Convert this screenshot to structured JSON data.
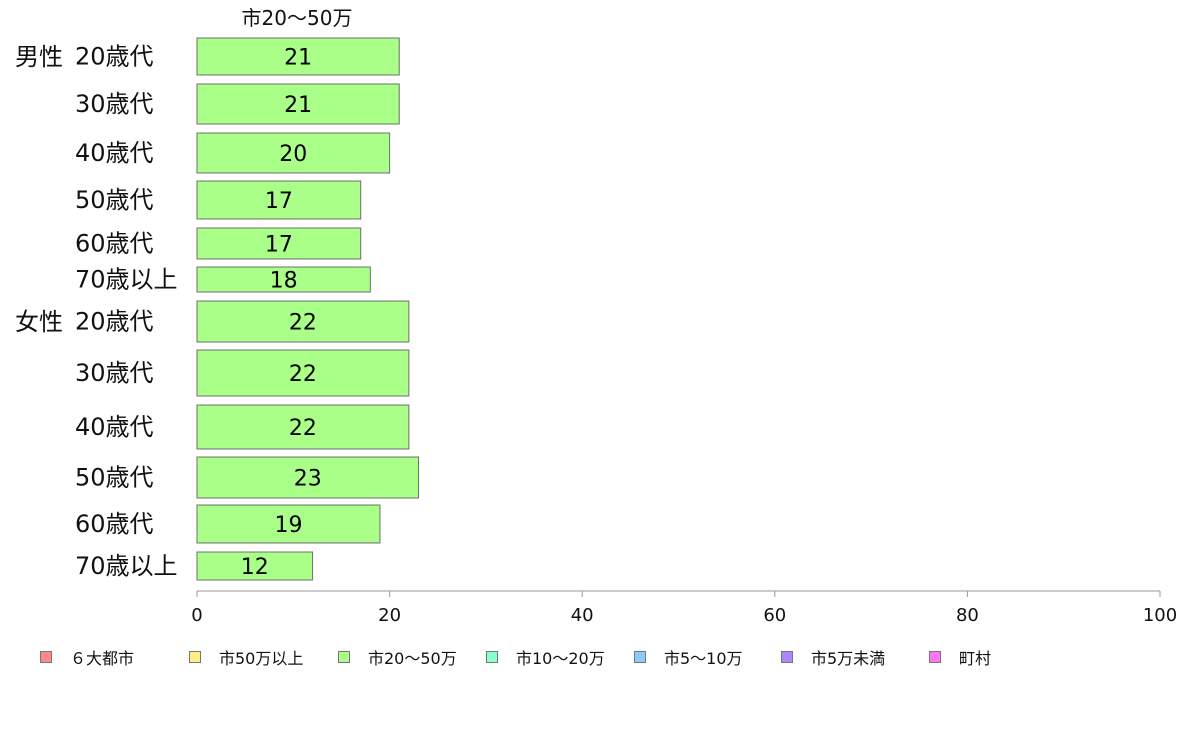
{
  "chart_data": {
    "type": "bar",
    "orientation": "horizontal",
    "title": "市20〜50万",
    "series": [
      {
        "name": "市20〜50万",
        "color": "#aaff88",
        "values": [
          21,
          21,
          20,
          17,
          17,
          18,
          22,
          22,
          22,
          23,
          19,
          12
        ]
      }
    ],
    "groups": [
      {
        "label": "男性",
        "categories": [
          "20歳代",
          "30歳代",
          "40歳代",
          "50歳代",
          "60歳代",
          "70歳以上"
        ],
        "values": [
          21,
          21,
          20,
          17,
          17,
          18
        ]
      },
      {
        "label": "女性",
        "categories": [
          "20歳代",
          "30歳代",
          "40歳代",
          "50歳代",
          "60歳代",
          "70歳以上"
        ],
        "values": [
          22,
          22,
          22,
          23,
          19,
          12
        ]
      }
    ],
    "xlim": [
      0,
      100
    ],
    "xticks": [
      0,
      20,
      40,
      60,
      80,
      100
    ],
    "grid": false,
    "legend_position": "bottom",
    "legend": [
      {
        "label": "６大都市",
        "color": "#ff8888"
      },
      {
        "label": "市50万以上",
        "color": "#ffee88"
      },
      {
        "label": "市20〜50万",
        "color": "#aaff88"
      },
      {
        "label": "市10〜20万",
        "color": "#88ffcc"
      },
      {
        "label": "市5〜10万",
        "color": "#88ccff"
      },
      {
        "label": "市5万未満",
        "color": "#aa88ff"
      },
      {
        "label": "町村",
        "color": "#ff77ee"
      }
    ]
  }
}
